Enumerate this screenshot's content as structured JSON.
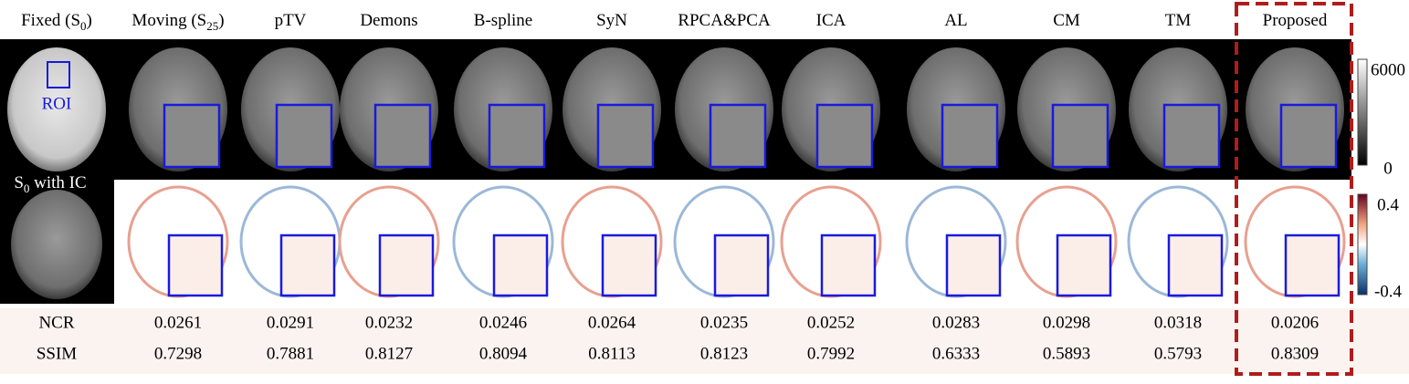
{
  "columns": [
    {
      "label": "Fixed (S",
      "sub": "0",
      "end": ")"
    },
    {
      "label": "Moving (S",
      "sub": "25",
      "end": ")"
    },
    {
      "label": "pTV"
    },
    {
      "label": "Demons"
    },
    {
      "label": "B-spline"
    },
    {
      "label": "SyN"
    },
    {
      "label": "RPCA&PCA"
    },
    {
      "label": "ICA"
    },
    {
      "label": "AL"
    },
    {
      "label": "CM"
    },
    {
      "label": "TM"
    },
    {
      "label": "Proposed"
    }
  ],
  "roi_label": "ROI",
  "reference_label": {
    "label": "S",
    "sub": "0",
    "end": " with IC"
  },
  "colorbars": [
    {
      "max": 6000,
      "min": 0
    },
    {
      "max": 0.4,
      "min": -0.4
    }
  ],
  "table": {
    "rows": [
      {
        "label": "NCR",
        "values": [
          0.0261,
          0.0291,
          0.0232,
          0.0246,
          0.0264,
          0.0235,
          0.0252,
          0.0283,
          0.0298,
          0.0318,
          0.0206
        ]
      },
      {
        "label": "SSIM",
        "values": [
          0.7298,
          0.7881,
          0.8127,
          0.8094,
          0.8113,
          0.8123,
          0.7992,
          0.6333,
          0.5893,
          0.5793,
          0.8309
        ]
      }
    ]
  }
}
